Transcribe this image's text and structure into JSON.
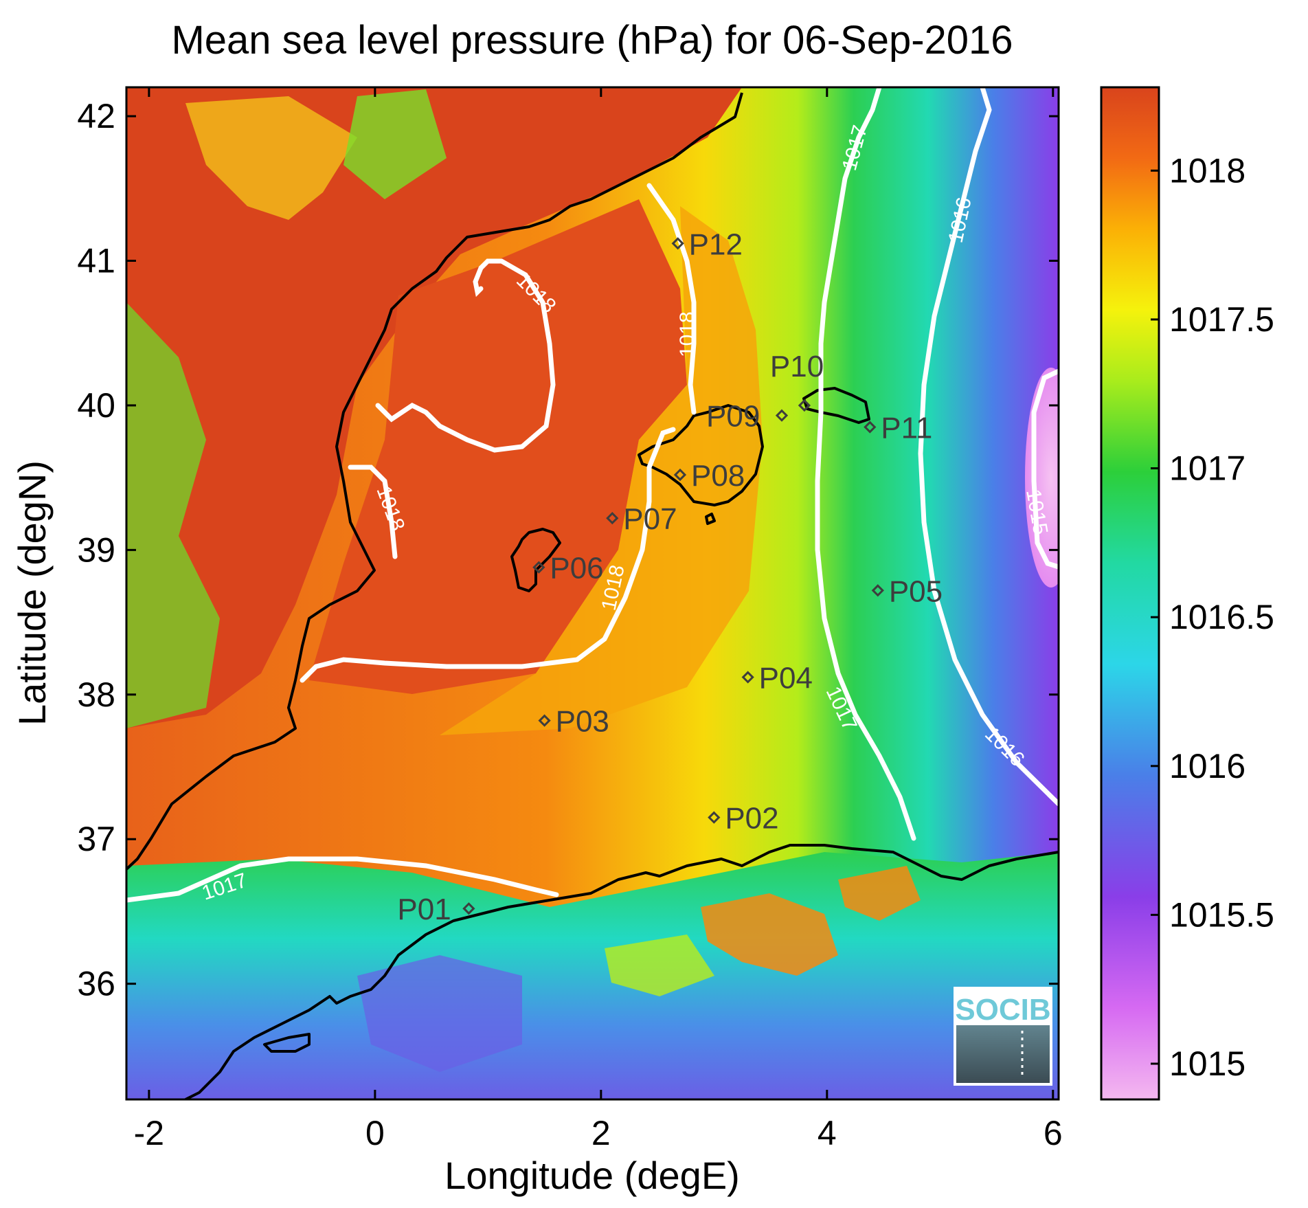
{
  "title": "Mean sea level pressure (hPa) for 06-Sep-2016",
  "x_axis": {
    "label": "Longitude (degE)",
    "range": [
      -2.2,
      6.05
    ],
    "ticks": [
      -2,
      0,
      2,
      4,
      6
    ],
    "tick_labels": [
      "-2",
      "0",
      "2",
      "4",
      "6"
    ]
  },
  "y_axis": {
    "label": "Latitude (degN)",
    "range": [
      35.2,
      42.2
    ],
    "ticks": [
      36,
      37,
      38,
      39,
      40,
      41,
      42
    ],
    "tick_labels": [
      "36",
      "37",
      "38",
      "39",
      "40",
      "41",
      "42"
    ]
  },
  "colorbar": {
    "range": [
      1014.88,
      1018.28
    ],
    "ticks": [
      1015,
      1015.5,
      1016,
      1016.5,
      1017,
      1017.5,
      1018
    ],
    "tick_labels": [
      "1015",
      "1015.5",
      "1016",
      "1016.5",
      "1017",
      "1017.5",
      "1018"
    ],
    "colormap": [
      "#f4b8f0",
      "#b13ef0",
      "#6a3fe6",
      "#4a7fe8",
      "#2cd6e8",
      "#22d9a2",
      "#2ccf3a",
      "#a9ec1c",
      "#f5f20c",
      "#fbb006",
      "#f26a14",
      "#d9441c"
    ]
  },
  "stations": [
    {
      "id": "P01",
      "lon": 0.83,
      "lat": 36.52
    },
    {
      "id": "P02",
      "lon": 3.0,
      "lat": 37.15
    },
    {
      "id": "P03",
      "lon": 1.5,
      "lat": 37.82
    },
    {
      "id": "P04",
      "lon": 3.3,
      "lat": 38.12
    },
    {
      "id": "P05",
      "lon": 4.45,
      "lat": 38.72
    },
    {
      "id": "P06",
      "lon": 1.45,
      "lat": 38.88
    },
    {
      "id": "P07",
      "lon": 2.1,
      "lat": 39.22
    },
    {
      "id": "P08",
      "lon": 2.7,
      "lat": 39.52
    },
    {
      "id": "P09",
      "lon": 3.6,
      "lat": 39.93
    },
    {
      "id": "P10",
      "lon": 3.8,
      "lat": 40.0
    },
    {
      "id": "P11",
      "lon": 4.38,
      "lat": 39.85
    },
    {
      "id": "P12",
      "lon": 2.68,
      "lat": 41.12
    }
  ],
  "contour_labels": [
    "1018",
    "1018",
    "1018",
    "1018",
    "1017",
    "1017",
    "1017",
    "1016",
    "1016",
    "1015"
  ],
  "logo": {
    "text": "SOCIB"
  }
}
